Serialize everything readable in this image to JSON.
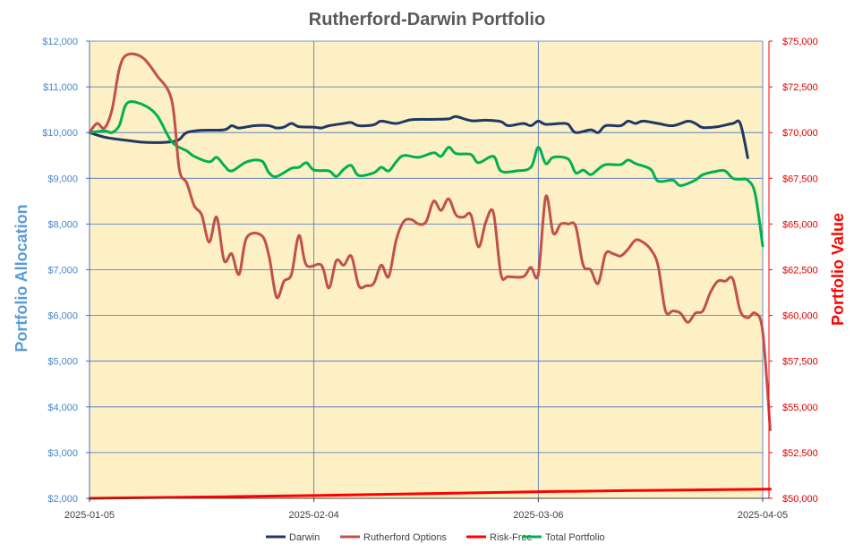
{
  "chart_data": {
    "type": "line",
    "title": "Rutherford-Darwin Portfolio",
    "ylabel_left": "Portfolio Allocation",
    "ylabel_right": "Portfolio Value",
    "ylim_left": [
      2000,
      12000
    ],
    "ylim_right": [
      50000,
      75000
    ],
    "xlim": [
      "2025-01-05",
      "2025-04-05"
    ],
    "x_ticks": [
      "2025-01-05",
      "2025-02-04",
      "2025-03-06",
      "2025-04-05"
    ],
    "y_ticks_left": [
      "$2,000",
      "$3,000",
      "$4,000",
      "$5,000",
      "$6,000",
      "$7,000",
      "$8,000",
      "$9,000",
      "$10,000",
      "$11,000",
      "$12,000"
    ],
    "y_ticks_right": [
      "$50,000",
      "$52,500",
      "$55,000",
      "$57,500",
      "$60,000",
      "$62,500",
      "$65,000",
      "$67,500",
      "$70,000",
      "$72,500",
      "$75,000"
    ],
    "grid": true,
    "plot_background": "#fdf0c4",
    "legend_position": "bottom",
    "series": [
      {
        "name": "Darwin",
        "axis": "left",
        "color": "#1f3864",
        "points": [
          [
            "2025-01-05",
            10000
          ],
          [
            "2025-01-07",
            9900
          ],
          [
            "2025-01-09",
            9850
          ],
          [
            "2025-01-10",
            9830
          ],
          [
            "2025-01-12",
            9790
          ],
          [
            "2025-01-14",
            9780
          ],
          [
            "2025-01-16",
            9800
          ],
          [
            "2025-01-17",
            9850
          ],
          [
            "2025-01-18",
            10000
          ],
          [
            "2025-01-20",
            10050
          ],
          [
            "2025-01-23",
            10060
          ],
          [
            "2025-01-24",
            10150
          ],
          [
            "2025-01-25",
            10100
          ],
          [
            "2025-01-27",
            10150
          ],
          [
            "2025-01-29",
            10150
          ],
          [
            "2025-01-30",
            10100
          ],
          [
            "2025-01-31",
            10120
          ],
          [
            "2025-02-01",
            10200
          ],
          [
            "2025-02-02",
            10130
          ],
          [
            "2025-02-04",
            10120
          ],
          [
            "2025-02-05",
            10100
          ],
          [
            "2025-02-06",
            10150
          ],
          [
            "2025-02-08",
            10200
          ],
          [
            "2025-02-09",
            10220
          ],
          [
            "2025-02-10",
            10150
          ],
          [
            "2025-02-12",
            10170
          ],
          [
            "2025-02-13",
            10250
          ],
          [
            "2025-02-15",
            10200
          ],
          [
            "2025-02-17",
            10280
          ],
          [
            "2025-02-20",
            10290
          ],
          [
            "2025-02-22",
            10300
          ],
          [
            "2025-02-23",
            10350
          ],
          [
            "2025-02-25",
            10260
          ],
          [
            "2025-02-27",
            10270
          ],
          [
            "2025-03-01",
            10240
          ],
          [
            "2025-03-02",
            10150
          ],
          [
            "2025-03-04",
            10200
          ],
          [
            "2025-03-05",
            10150
          ],
          [
            "2025-03-06",
            10250
          ],
          [
            "2025-03-07",
            10180
          ],
          [
            "2025-03-09",
            10200
          ],
          [
            "2025-03-10",
            10180
          ],
          [
            "2025-03-11",
            10000
          ],
          [
            "2025-03-13",
            10060
          ],
          [
            "2025-03-14",
            10000
          ],
          [
            "2025-03-15",
            10150
          ],
          [
            "2025-03-17",
            10150
          ],
          [
            "2025-03-18",
            10250
          ],
          [
            "2025-03-19",
            10200
          ],
          [
            "2025-03-20",
            10250
          ],
          [
            "2025-03-22",
            10200
          ],
          [
            "2025-03-24",
            10150
          ],
          [
            "2025-03-26",
            10250
          ],
          [
            "2025-03-27",
            10200
          ],
          [
            "2025-03-28",
            10110
          ],
          [
            "2025-03-30",
            10130
          ],
          [
            "2025-04-01",
            10200
          ],
          [
            "2025-04-02",
            10200
          ],
          [
            "2025-04-03",
            9450
          ]
        ]
      },
      {
        "name": "Rutherford Options",
        "axis": "left",
        "color": "#c0504d",
        "points": [
          [
            "2025-01-05",
            10000
          ],
          [
            "2025-01-06",
            10200
          ],
          [
            "2025-01-07",
            10100
          ],
          [
            "2025-01-08",
            10500
          ],
          [
            "2025-01-09",
            11400
          ],
          [
            "2025-01-10",
            11700
          ],
          [
            "2025-01-12",
            11650
          ],
          [
            "2025-01-14",
            11250
          ],
          [
            "2025-01-16",
            10700
          ],
          [
            "2025-01-17",
            9200
          ],
          [
            "2025-01-18",
            8900
          ],
          [
            "2025-01-19",
            8400
          ],
          [
            "2025-01-20",
            8200
          ],
          [
            "2025-01-21",
            7600
          ],
          [
            "2025-01-22",
            8150
          ],
          [
            "2025-01-23",
            7200
          ],
          [
            "2025-01-24",
            7350
          ],
          [
            "2025-01-25",
            6900
          ],
          [
            "2025-01-26",
            7700
          ],
          [
            "2025-01-28",
            7750
          ],
          [
            "2025-01-29",
            7300
          ],
          [
            "2025-01-30",
            6400
          ],
          [
            "2025-01-31",
            6750
          ],
          [
            "2025-02-01",
            6900
          ],
          [
            "2025-02-02",
            7750
          ],
          [
            "2025-02-03",
            7100
          ],
          [
            "2025-02-05",
            7100
          ],
          [
            "2025-02-06",
            6600
          ],
          [
            "2025-02-07",
            7200
          ],
          [
            "2025-02-08",
            7100
          ],
          [
            "2025-02-09",
            7300
          ],
          [
            "2025-02-10",
            6650
          ],
          [
            "2025-02-11",
            6650
          ],
          [
            "2025-02-12",
            6700
          ],
          [
            "2025-02-13",
            7100
          ],
          [
            "2025-02-14",
            6850
          ],
          [
            "2025-02-15",
            7650
          ],
          [
            "2025-02-16",
            8050
          ],
          [
            "2025-02-17",
            8100
          ],
          [
            "2025-02-18",
            8000
          ],
          [
            "2025-02-19",
            8050
          ],
          [
            "2025-02-20",
            8500
          ],
          [
            "2025-02-21",
            8300
          ],
          [
            "2025-02-22",
            8550
          ],
          [
            "2025-02-23",
            8200
          ],
          [
            "2025-02-24",
            8150
          ],
          [
            "2025-02-25",
            8200
          ],
          [
            "2025-02-26",
            7500
          ],
          [
            "2025-02-27",
            8050
          ],
          [
            "2025-02-28",
            8250
          ],
          [
            "2025-03-01",
            6900
          ],
          [
            "2025-03-02",
            6850
          ],
          [
            "2025-03-04",
            6850
          ],
          [
            "2025-03-05",
            7050
          ],
          [
            "2025-03-06",
            6900
          ],
          [
            "2025-03-07",
            8600
          ],
          [
            "2025-03-08",
            7800
          ],
          [
            "2025-03-09",
            8000
          ],
          [
            "2025-03-10",
            8000
          ],
          [
            "2025-03-11",
            7950
          ],
          [
            "2025-03-12",
            7100
          ],
          [
            "2025-03-13",
            7000
          ],
          [
            "2025-03-14",
            6700
          ],
          [
            "2025-03-15",
            7350
          ],
          [
            "2025-03-16",
            7350
          ],
          [
            "2025-03-17",
            7300
          ],
          [
            "2025-03-18",
            7450
          ],
          [
            "2025-03-19",
            7650
          ],
          [
            "2025-03-20",
            7600
          ],
          [
            "2025-03-21",
            7450
          ],
          [
            "2025-03-22",
            7100
          ],
          [
            "2025-03-23",
            6100
          ],
          [
            "2025-03-24",
            6100
          ],
          [
            "2025-03-25",
            6050
          ],
          [
            "2025-03-26",
            5850
          ],
          [
            "2025-03-27",
            6050
          ],
          [
            "2025-03-28",
            6100
          ],
          [
            "2025-03-29",
            6500
          ],
          [
            "2025-03-30",
            6750
          ],
          [
            "2025-03-31",
            6750
          ],
          [
            "2025-04-01",
            6800
          ],
          [
            "2025-04-02",
            6100
          ],
          [
            "2025-04-03",
            5950
          ],
          [
            "2025-04-04",
            6050
          ],
          [
            "2025-04-05",
            5650
          ],
          [
            "2025-04-06",
            3500
          ]
        ]
      },
      {
        "name": "Risk-Free",
        "axis": "left",
        "color": "#ff0000",
        "points": [
          [
            "2025-01-05",
            2000
          ],
          [
            "2025-02-04",
            2060
          ],
          [
            "2025-03-06",
            2145
          ],
          [
            "2025-04-06",
            2200
          ]
        ]
      },
      {
        "name": "Total Portfolio",
        "axis": "right",
        "color": "#00b050",
        "points": [
          [
            "2025-01-05",
            70000
          ],
          [
            "2025-01-07",
            70100
          ],
          [
            "2025-01-08",
            70000
          ],
          [
            "2025-01-09",
            70400
          ],
          [
            "2025-01-10",
            71600
          ],
          [
            "2025-01-12",
            71550
          ],
          [
            "2025-01-14",
            70950
          ],
          [
            "2025-01-16",
            69500
          ],
          [
            "2025-01-18",
            69000
          ],
          [
            "2025-01-19",
            68700
          ],
          [
            "2025-01-21",
            68400
          ],
          [
            "2025-01-22",
            68650
          ],
          [
            "2025-01-23",
            68200
          ],
          [
            "2025-01-24",
            67900
          ],
          [
            "2025-01-26",
            68400
          ],
          [
            "2025-01-28",
            68450
          ],
          [
            "2025-01-29",
            67800
          ],
          [
            "2025-01-30",
            67600
          ],
          [
            "2025-02-01",
            68050
          ],
          [
            "2025-02-02",
            68100
          ],
          [
            "2025-02-03",
            68350
          ],
          [
            "2025-02-04",
            67950
          ],
          [
            "2025-02-06",
            67900
          ],
          [
            "2025-02-07",
            67600
          ],
          [
            "2025-02-08",
            68000
          ],
          [
            "2025-02-09",
            68200
          ],
          [
            "2025-02-10",
            67650
          ],
          [
            "2025-02-12",
            67800
          ],
          [
            "2025-02-13",
            68100
          ],
          [
            "2025-02-14",
            67900
          ],
          [
            "2025-02-15",
            68400
          ],
          [
            "2025-02-16",
            68750
          ],
          [
            "2025-02-18",
            68650
          ],
          [
            "2025-02-20",
            68900
          ],
          [
            "2025-02-21",
            68700
          ],
          [
            "2025-02-22",
            69200
          ],
          [
            "2025-02-23",
            68850
          ],
          [
            "2025-02-25",
            68800
          ],
          [
            "2025-02-26",
            68350
          ],
          [
            "2025-02-28",
            68700
          ],
          [
            "2025-03-01",
            67900
          ],
          [
            "2025-03-03",
            67900
          ],
          [
            "2025-03-05",
            68100
          ],
          [
            "2025-03-06",
            69200
          ],
          [
            "2025-03-07",
            68300
          ],
          [
            "2025-03-08",
            68650
          ],
          [
            "2025-03-10",
            68550
          ],
          [
            "2025-03-11",
            67800
          ],
          [
            "2025-03-12",
            67950
          ],
          [
            "2025-03-13",
            67700
          ],
          [
            "2025-03-14",
            68000
          ],
          [
            "2025-03-15",
            68250
          ],
          [
            "2025-03-17",
            68250
          ],
          [
            "2025-03-18",
            68500
          ],
          [
            "2025-03-19",
            68300
          ],
          [
            "2025-03-21",
            68000
          ],
          [
            "2025-03-22",
            67350
          ],
          [
            "2025-03-24",
            67400
          ],
          [
            "2025-03-25",
            67100
          ],
          [
            "2025-03-27",
            67400
          ],
          [
            "2025-03-28",
            67700
          ],
          [
            "2025-03-30",
            67900
          ],
          [
            "2025-03-31",
            67900
          ],
          [
            "2025-04-01",
            67500
          ],
          [
            "2025-04-02",
            67450
          ],
          [
            "2025-04-03",
            67400
          ],
          [
            "2025-04-04",
            66650
          ],
          [
            "2025-04-05",
            63800
          ]
        ]
      }
    ]
  }
}
